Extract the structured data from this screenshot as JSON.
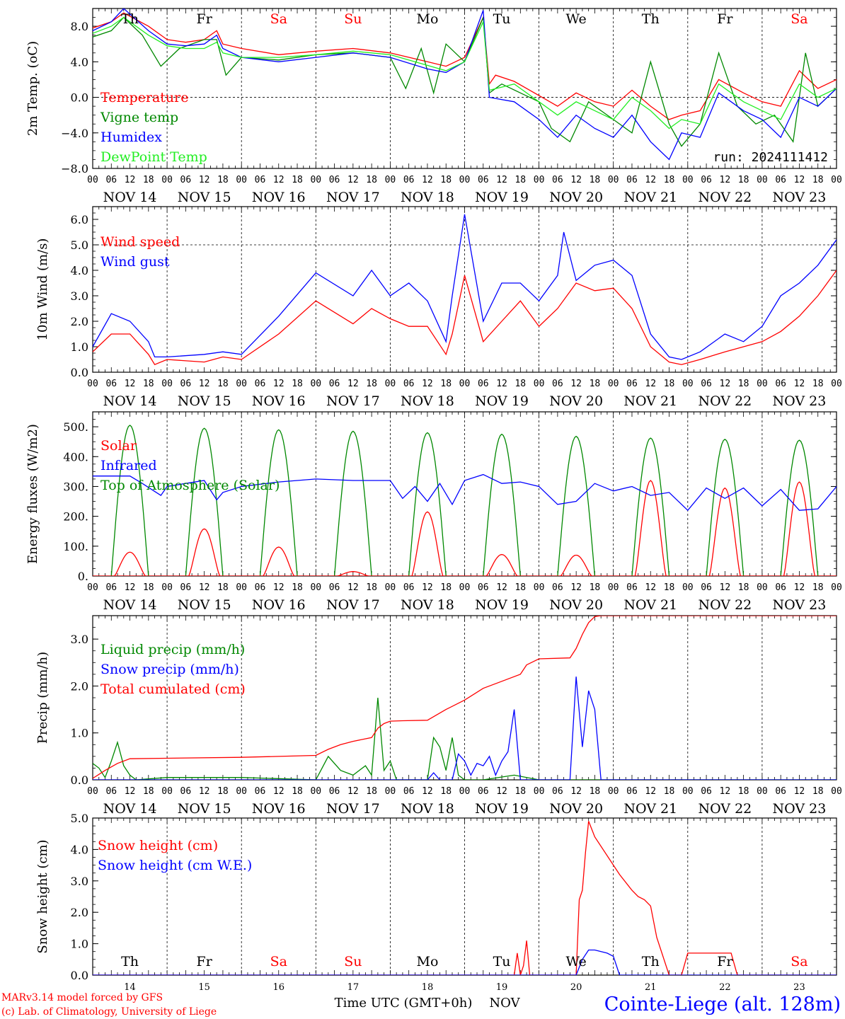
{
  "page": {
    "credit_line1": "MARv3.14 model forced by GFS",
    "credit_line2": "(c) Lab. of Climatology, University of Liege",
    "xaxis_title": "Time UTC (GMT+0h)",
    "xaxis_unit": "NOV",
    "station": "Cointe-Liege (alt. 128m)",
    "run_label": "run: 2024111412",
    "colors": {
      "red": "#ff0000",
      "green": "#008800",
      "blue": "#0000ff",
      "lightgreen": "#22ee22",
      "weekend": "#ff0000"
    }
  },
  "chart_data": [
    {
      "type": "line",
      "id": "temp",
      "ylabel": "2m Temp. (oC)",
      "ylim": [
        -8,
        10
      ],
      "yticks": [
        -8,
        -4,
        0,
        4,
        8
      ],
      "ytick_labels": [
        "−8.0",
        "−4.0",
        "0.0",
        "4.0",
        "8.0"
      ],
      "ref_line": 0,
      "hours": [
        0,
        6,
        12,
        18,
        24,
        30,
        36,
        42,
        48,
        54,
        60,
        66,
        72,
        78,
        84,
        90,
        96,
        102,
        108,
        114,
        120,
        126,
        132,
        138,
        144,
        150,
        156,
        162,
        168,
        174,
        180,
        186,
        192,
        198,
        204,
        210,
        216,
        222,
        228,
        234
      ],
      "day_labels": [
        "Th",
        "Fr",
        "Sa",
        "Su",
        "Mo",
        "Tu",
        "We",
        "Th",
        "Fr",
        "Sa"
      ],
      "day_labels_weekend": [
        false,
        false,
        true,
        true,
        false,
        false,
        false,
        false,
        false,
        true
      ],
      "date_labels": [
        "NOV 14",
        "NOV 15",
        "NOV 16",
        "NOV 17",
        "NOV 18",
        "NOV 19",
        "NOV 20",
        "NOV 21",
        "NOV 22",
        "NOV 23"
      ],
      "hour_tick_labels": [
        "00",
        "06",
        "12",
        "18"
      ],
      "series": [
        {
          "name": "Temperature",
          "color": "#ff0000",
          "x": [
            0,
            6,
            10,
            18,
            24,
            30,
            36,
            40,
            42,
            48,
            60,
            72,
            84,
            96,
            108,
            114,
            120,
            126,
            128,
            130,
            136,
            144,
            150,
            156,
            162,
            168,
            174,
            180,
            186,
            190,
            196,
            202,
            210,
            216,
            222,
            228,
            234,
            240
          ],
          "values": [
            7.8,
            8.5,
            9.5,
            8.0,
            6.5,
            6.2,
            6.5,
            7.5,
            6.0,
            5.5,
            4.8,
            5.2,
            5.5,
            5.0,
            4.0,
            3.5,
            4.5,
            9.0,
            1.5,
            2.5,
            1.8,
            0.2,
            -1.0,
            0.5,
            -0.5,
            -1.0,
            0.8,
            -1.0,
            -2.5,
            -2.0,
            -1.5,
            2.0,
            0.5,
            -0.5,
            -1.0,
            3.0,
            1.0,
            2.0
          ]
        },
        {
          "name": "Vigne temp",
          "color": "#008800",
          "x": [
            0,
            6,
            10,
            16,
            22,
            28,
            36,
            40,
            43,
            48,
            60,
            72,
            84,
            96,
            101,
            106,
            110,
            114,
            120,
            126,
            128,
            132,
            138,
            144,
            148,
            154,
            160,
            168,
            174,
            180,
            186,
            190,
            196,
            202,
            208,
            214,
            220,
            226,
            230,
            234,
            240
          ],
          "values": [
            6.8,
            7.5,
            9.0,
            7.0,
            3.5,
            5.5,
            6.5,
            6.5,
            2.5,
            4.5,
            4.2,
            4.8,
            5.0,
            4.5,
            1.0,
            5.5,
            0.5,
            6.0,
            4.0,
            9.0,
            0.5,
            1.5,
            0.5,
            -0.5,
            -3.5,
            -5.0,
            -0.5,
            -2.5,
            -4.0,
            4.0,
            -3.0,
            -5.5,
            -3.0,
            5.0,
            -1.0,
            -3.0,
            -2.0,
            -5.0,
            5.0,
            -1.0,
            1.0
          ]
        },
        {
          "name": "Humidex",
          "color": "#0000ff",
          "x": [
            0,
            6,
            10,
            18,
            24,
            30,
            36,
            40,
            42,
            48,
            60,
            72,
            84,
            96,
            108,
            114,
            120,
            126,
            128,
            136,
            144,
            150,
            156,
            162,
            168,
            174,
            180,
            186,
            190,
            196,
            202,
            210,
            216,
            222,
            228,
            234,
            240
          ],
          "values": [
            7.5,
            8.5,
            10.0,
            7.5,
            6.0,
            5.8,
            6.0,
            7.0,
            5.5,
            4.5,
            4.0,
            4.5,
            5.0,
            4.5,
            3.2,
            2.8,
            4.0,
            9.8,
            0.0,
            -0.5,
            -2.5,
            -4.5,
            -2.0,
            -3.5,
            -4.5,
            -2.0,
            -5.0,
            -7.0,
            -4.0,
            -4.5,
            0.5,
            -1.5,
            -2.5,
            -4.5,
            0.0,
            -1.0,
            1.0
          ]
        },
        {
          "name": "DewPoint Temp",
          "color": "#22ee22",
          "x": [
            0,
            6,
            10,
            18,
            24,
            30,
            36,
            40,
            42,
            48,
            60,
            72,
            84,
            96,
            108,
            114,
            120,
            126,
            128,
            136,
            144,
            150,
            156,
            162,
            168,
            174,
            180,
            186,
            190,
            196,
            202,
            210,
            216,
            222,
            228,
            234,
            240
          ],
          "values": [
            7.2,
            8.0,
            9.0,
            7.0,
            5.8,
            5.5,
            5.5,
            6.2,
            5.0,
            4.5,
            4.5,
            4.8,
            5.2,
            4.8,
            3.6,
            3.0,
            4.0,
            8.5,
            0.8,
            1.5,
            -0.5,
            -2.0,
            -0.5,
            -1.5,
            -2.5,
            0.0,
            -1.5,
            -3.5,
            -2.5,
            -3.0,
            1.5,
            -0.5,
            -1.5,
            -2.5,
            1.5,
            0.0,
            1.0
          ]
        }
      ],
      "legend_placement": "left"
    },
    {
      "type": "line",
      "id": "wind",
      "ylabel": "10m Wind (m/s)",
      "ylim": [
        0,
        6.5
      ],
      "yticks": [
        0,
        1,
        2,
        3,
        4,
        5,
        6
      ],
      "ytick_labels": [
        "0.0",
        "1.0",
        "2.0",
        "3.0",
        "4.0",
        "5.0",
        "6.0"
      ],
      "ref_line": 5,
      "series": [
        {
          "name": "Wind speed",
          "color": "#ff0000",
          "x": [
            0,
            6,
            12,
            18,
            20,
            24,
            36,
            42,
            48,
            60,
            72,
            84,
            90,
            96,
            102,
            108,
            114,
            116,
            120,
            126,
            132,
            138,
            144,
            150,
            156,
            162,
            168,
            174,
            180,
            186,
            190,
            196,
            204,
            210,
            216,
            222,
            228,
            234,
            240
          ],
          "values": [
            0.8,
            1.5,
            1.5,
            0.7,
            0.3,
            0.5,
            0.4,
            0.6,
            0.5,
            1.5,
            2.8,
            1.9,
            2.5,
            2.1,
            1.8,
            1.8,
            0.7,
            1.5,
            3.8,
            1.2,
            2.0,
            2.8,
            1.8,
            2.5,
            3.5,
            3.2,
            3.3,
            2.5,
            1.0,
            0.4,
            0.3,
            0.5,
            0.8,
            1.0,
            1.2,
            1.6,
            2.2,
            3.0,
            4.0
          ]
        },
        {
          "name": "Wind gust",
          "color": "#0000ff",
          "x": [
            0,
            6,
            12,
            18,
            20,
            24,
            36,
            42,
            48,
            60,
            72,
            84,
            90,
            96,
            102,
            108,
            114,
            116,
            120,
            126,
            132,
            138,
            144,
            150,
            152,
            156,
            162,
            168,
            174,
            180,
            186,
            190,
            196,
            204,
            210,
            216,
            222,
            228,
            234,
            240
          ],
          "values": [
            1.0,
            2.3,
            2.0,
            1.2,
            0.6,
            0.6,
            0.7,
            0.8,
            0.7,
            2.2,
            3.9,
            3.0,
            4.0,
            3.0,
            3.5,
            2.8,
            1.2,
            3.0,
            6.2,
            2.0,
            3.5,
            3.5,
            2.8,
            3.8,
            5.5,
            3.6,
            4.2,
            4.4,
            3.8,
            1.5,
            0.6,
            0.5,
            0.8,
            1.5,
            1.2,
            1.8,
            3.0,
            3.5,
            4.2,
            5.2
          ]
        }
      ],
      "legend_placement": "left"
    },
    {
      "type": "line",
      "id": "energy",
      "ylabel": "Energy fluxes (W/m2)",
      "ylim": [
        0,
        550
      ],
      "yticks": [
        0,
        100,
        200,
        300,
        400,
        500
      ],
      "ytick_labels": [
        "0.",
        "100.",
        "200.",
        "300.",
        "400.",
        "500."
      ],
      "solar_peaks": [
        80,
        158,
        97,
        15,
        215,
        72,
        70,
        320,
        295,
        315
      ],
      "toa_peaks": [
        505,
        495,
        490,
        485,
        480,
        475,
        468,
        462,
        458,
        455
      ],
      "infrared": {
        "x": [
          0,
          12,
          16,
          22,
          24,
          30,
          36,
          40,
          42,
          48,
          60,
          72,
          84,
          96,
          100,
          104,
          108,
          112,
          116,
          120,
          126,
          132,
          138,
          144,
          150,
          156,
          162,
          168,
          174,
          180,
          186,
          192,
          198,
          204,
          210,
          216,
          222,
          228,
          234,
          240
        ],
        "values": [
          335,
          335,
          310,
          270,
          300,
          310,
          320,
          255,
          280,
          300,
          315,
          325,
          320,
          320,
          260,
          300,
          250,
          310,
          240,
          320,
          340,
          310,
          315,
          300,
          240,
          250,
          310,
          285,
          300,
          270,
          280,
          220,
          295,
          260,
          295,
          235,
          290,
          220,
          225,
          300
        ]
      },
      "series": [
        {
          "name": "Solar",
          "color": "#ff0000"
        },
        {
          "name": "Infrared",
          "color": "#0000ff"
        },
        {
          "name": "Top of Atmosphere (Solar)",
          "color": "#008800"
        }
      ],
      "legend_placement": "left"
    },
    {
      "type": "line",
      "id": "precip",
      "ylabel": "Precip (mm/h)",
      "ylim": [
        0,
        3.5
      ],
      "yticks": [
        0,
        1,
        2,
        3
      ],
      "ytick_labels": [
        "0.0",
        "1.0",
        "2.0",
        "3.0"
      ],
      "series": [
        {
          "name": "Liquid precip (mm/h)",
          "color": "#008800",
          "x": [
            0,
            2,
            4,
            6,
            8,
            10,
            12,
            14,
            24,
            48,
            72,
            76,
            80,
            84,
            88,
            90,
            92,
            94,
            96,
            98,
            100,
            104,
            108,
            110,
            112,
            114,
            116,
            118,
            120,
            122,
            124,
            126,
            136,
            144,
            150,
            240
          ],
          "values": [
            0.35,
            0.25,
            0.05,
            0.4,
            0.8,
            0.3,
            0.1,
            0.0,
            0.05,
            0.05,
            0.0,
            0.5,
            0.2,
            0.1,
            0.3,
            0.1,
            1.75,
            0.2,
            0.4,
            0.0,
            0.0,
            0.0,
            0.0,
            0.9,
            0.7,
            0.2,
            0.9,
            0.1,
            0.0,
            0.0,
            0.0,
            0.0,
            0.1,
            0.0,
            0.0,
            0.0
          ]
        },
        {
          "name": "Snow precip (mm/h)",
          "color": "#0000ff",
          "x": [
            0,
            108,
            110,
            112,
            116,
            118,
            120,
            122,
            124,
            126,
            128,
            130,
            132,
            134,
            136,
            138,
            140,
            142,
            144,
            150,
            154,
            156,
            158,
            160,
            162,
            164,
            166,
            240
          ],
          "values": [
            0.0,
            0.0,
            0.15,
            0.0,
            0.0,
            0.55,
            0.4,
            0.1,
            0.35,
            0.3,
            0.5,
            0.1,
            0.4,
            0.6,
            1.5,
            0.0,
            0.0,
            0.0,
            0.0,
            0.0,
            0.0,
            2.2,
            0.7,
            1.9,
            1.5,
            0.0,
            0.0,
            0.0
          ]
        },
        {
          "name": "Total cumulated (cm)",
          "color": "#ff0000",
          "x": [
            0,
            4,
            8,
            12,
            24,
            48,
            60,
            72,
            76,
            80,
            84,
            90,
            92,
            94,
            96,
            100,
            108,
            114,
            120,
            126,
            132,
            138,
            140,
            144,
            154,
            156,
            158,
            160,
            162,
            164,
            240
          ],
          "values": [
            0.03,
            0.2,
            0.35,
            0.45,
            0.46,
            0.48,
            0.5,
            0.52,
            0.65,
            0.75,
            0.82,
            0.9,
            1.1,
            1.2,
            1.25,
            1.26,
            1.27,
            1.5,
            1.7,
            1.95,
            2.1,
            2.25,
            2.45,
            2.58,
            2.6,
            2.8,
            3.1,
            3.35,
            3.48,
            3.5,
            3.5
          ]
        }
      ],
      "legend_placement": "left"
    },
    {
      "type": "line",
      "id": "snow",
      "ylabel": "Snow height (cm)",
      "ylim": [
        0,
        5
      ],
      "yticks": [
        0,
        1,
        2,
        3,
        4,
        5
      ],
      "ytick_labels": [
        "0.0",
        "1.0",
        "2.0",
        "3.0",
        "4.0",
        "5.0"
      ],
      "bottom_day_numbers": [
        "14",
        "15",
        "16",
        "17",
        "18",
        "19",
        "20",
        "21",
        "22",
        "23"
      ],
      "series": [
        {
          "name": "Snow height (cm)",
          "color": "#ff0000",
          "x": [
            0,
            136,
            137,
            138,
            139,
            140,
            141,
            142,
            156,
            157,
            158,
            159,
            160,
            162,
            170,
            174,
            176,
            178,
            180,
            182,
            186,
            190,
            192,
            194,
            206,
            208,
            240
          ],
          "values": [
            0.0,
            0.0,
            0.7,
            0.0,
            0.3,
            1.1,
            0.0,
            0.0,
            0.0,
            2.4,
            2.7,
            3.9,
            4.9,
            4.4,
            3.2,
            2.7,
            2.5,
            2.4,
            2.2,
            1.2,
            0.0,
            0.0,
            0.7,
            0.7,
            0.7,
            0.0,
            0.0
          ]
        },
        {
          "name": "Snow height (cm W.E.)",
          "color": "#0000ff",
          "x": [
            0,
            156,
            158,
            160,
            162,
            166,
            168,
            170,
            240
          ],
          "values": [
            0.0,
            0.0,
            0.5,
            0.8,
            0.8,
            0.7,
            0.6,
            0.0,
            0.0
          ]
        }
      ],
      "legend_placement": "left"
    }
  ]
}
